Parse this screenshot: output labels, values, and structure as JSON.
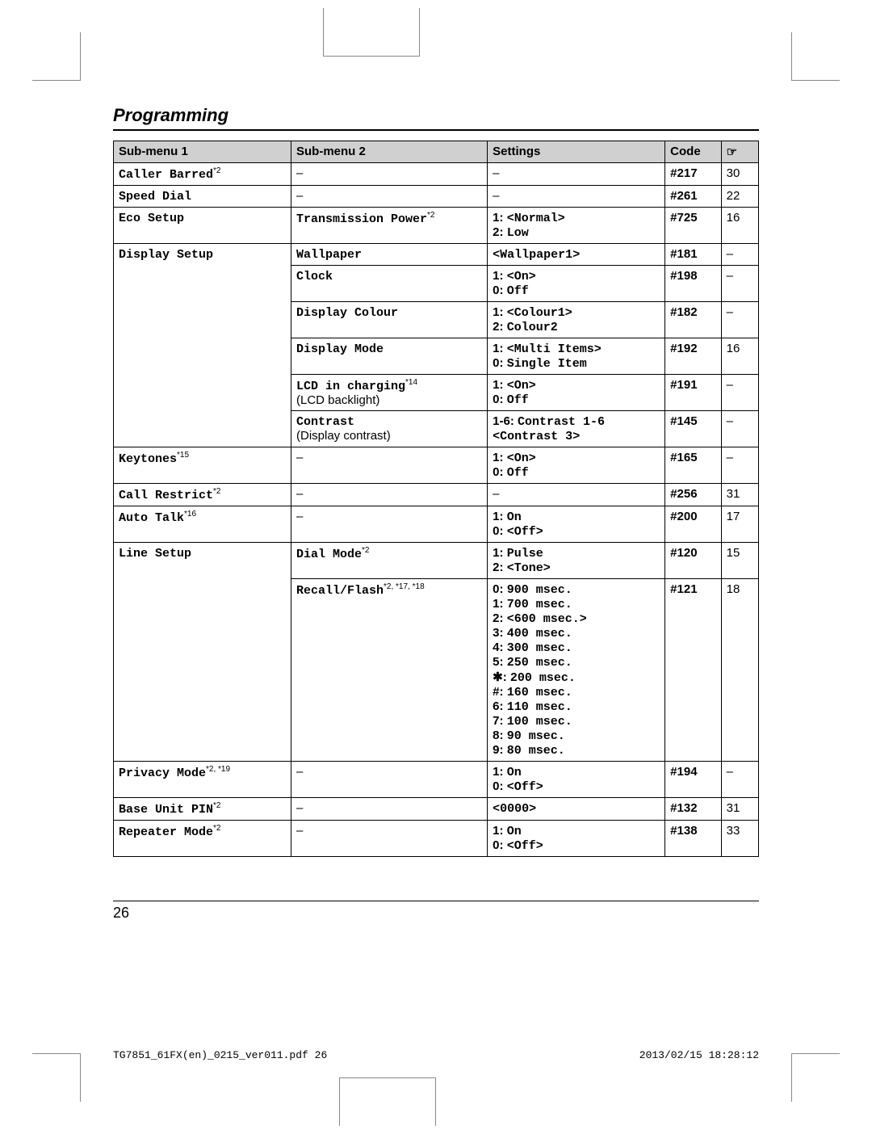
{
  "section_title": "Programming",
  "page_number": "26",
  "footer_left": "TG7851_61FX(en)_0215_ver011.pdf   26",
  "footer_right": "2013/02/15   18:28:12",
  "headers": {
    "h1": "Sub-menu 1",
    "h2": "Sub-menu 2",
    "h3": "Settings",
    "h4": "Code",
    "h5": "☞"
  },
  "rows": [
    {
      "c1": "Caller Barred",
      "c1_sup": "*2",
      "c2": "–",
      "c3": "–",
      "c4": "#217",
      "c5": "30"
    },
    {
      "c1": "Speed Dial",
      "c1_sup": "",
      "c2": "–",
      "c3": "–",
      "c4": "#261",
      "c5": "22"
    },
    {
      "c1": "Eco Setup",
      "c1_sup": "",
      "c2": "Transmission Power",
      "c2_sup": "*2",
      "c3": "1: <Normal>\n2: Low",
      "c4": "#725",
      "c5": "16"
    },
    {
      "c1": "Display Setup",
      "c1_rowspan": 6,
      "c2": "Wallpaper",
      "c3": "<Wallpaper1>",
      "c4": "#181",
      "c5": "–"
    },
    {
      "c2": "Clock",
      "c3": "1: <On>\n0: Off",
      "c4": "#198",
      "c5": "–"
    },
    {
      "c2": "Display Colour",
      "c3": "1: <Colour1>\n2: Colour2",
      "c4": "#182",
      "c5": "–"
    },
    {
      "c2": "Display Mode",
      "c3": "1: <Multi Items>\n0: Single Item",
      "c4": "#192",
      "c5": "16"
    },
    {
      "c2": "LCD in charging",
      "c2_sup": "*14",
      "c2_extra": "(LCD backlight)",
      "c3": "1: <On>\n0: Off",
      "c4": "#191",
      "c5": "–"
    },
    {
      "c2": "Contrast",
      "c2_extra": "(Display contrast)",
      "c3": "1-6: Contrast 1-6\n<Contrast 3>",
      "c4": "#145",
      "c5": "–"
    },
    {
      "c1": "Keytones",
      "c1_sup": "*15",
      "c2": "–",
      "c3": "1: <On>\n0: Off",
      "c4": "#165",
      "c5": "–"
    },
    {
      "c1": "Call Restrict",
      "c1_sup": "*2",
      "c2": "–",
      "c3": "–",
      "c4": "#256",
      "c5": "31"
    },
    {
      "c1": "Auto Talk",
      "c1_sup": "*16",
      "c2": "–",
      "c3": "1: On\n0: <Off>",
      "c4": "#200",
      "c5": "17"
    },
    {
      "c1": "Line Setup",
      "c1_rowspan": 2,
      "c2": "Dial Mode",
      "c2_sup": "*2",
      "c3": "1: Pulse\n2: <Tone>",
      "c4": "#120",
      "c5": "15"
    },
    {
      "c2": "Recall/Flash",
      "c2_sup": "*2, *17, *18",
      "c3": "0: 900 msec.\n1: 700 msec.\n2: <600 msec.>\n3: 400 msec.\n4: 300 msec.\n5: 250 msec.\n✱: 200 msec.\n#: 160 msec.\n6: 110 msec.\n7: 100 msec.\n8: 90 msec.\n9: 80 msec.",
      "c4": "#121",
      "c5": "18"
    },
    {
      "c1": "Privacy Mode",
      "c1_sup": "*2, *19",
      "c2": "–",
      "c3": "1: On\n0: <Off>",
      "c4": "#194",
      "c5": "–"
    },
    {
      "c1": "Base Unit PIN",
      "c1_sup": "*2",
      "c2": "–",
      "c3": "<0000>",
      "c4": "#132",
      "c5": "31"
    },
    {
      "c1": "Repeater Mode",
      "c1_sup": "*2",
      "c2": "–",
      "c3": "1: On\n0: <Off>",
      "c4": "#138",
      "c5": "33"
    }
  ]
}
